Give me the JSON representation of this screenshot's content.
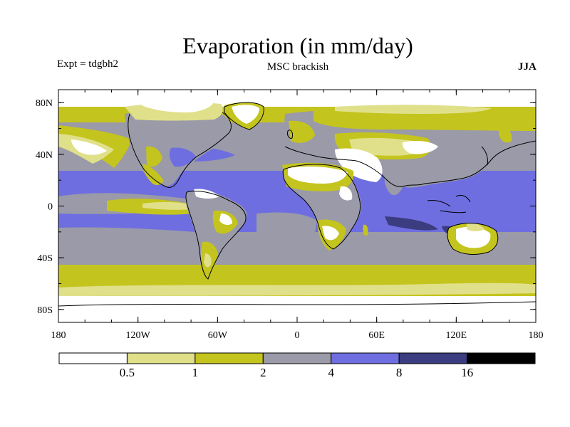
{
  "title": "Evaporation (in mm/day)",
  "experiment": "Expt = tdgbh2",
  "subtitle": "MSC brackish",
  "season": "JJA",
  "lat_ticks": [
    {
      "value": 80,
      "label": "80N"
    },
    {
      "value": 40,
      "label": "40N"
    },
    {
      "value": 0,
      "label": "0"
    },
    {
      "value": -40,
      "label": "40S"
    },
    {
      "value": -80,
      "label": "80S"
    }
  ],
  "lon_ticks": [
    {
      "value": -180,
      "label": "180"
    },
    {
      "value": -120,
      "label": "120W"
    },
    {
      "value": -60,
      "label": "60W"
    },
    {
      "value": 0,
      "label": "0"
    },
    {
      "value": 60,
      "label": "60E"
    },
    {
      "value": 120,
      "label": "120E"
    },
    {
      "value": 180,
      "label": "180"
    }
  ],
  "colorbar": {
    "colors": [
      "#ffffff",
      "#e0e08a",
      "#c4c41e",
      "#9a9aa8",
      "#6e6ee0",
      "#3c3c80",
      "#000000"
    ],
    "boundaries": [
      "0.5",
      "1",
      "2",
      "4",
      "8",
      "16"
    ]
  }
}
